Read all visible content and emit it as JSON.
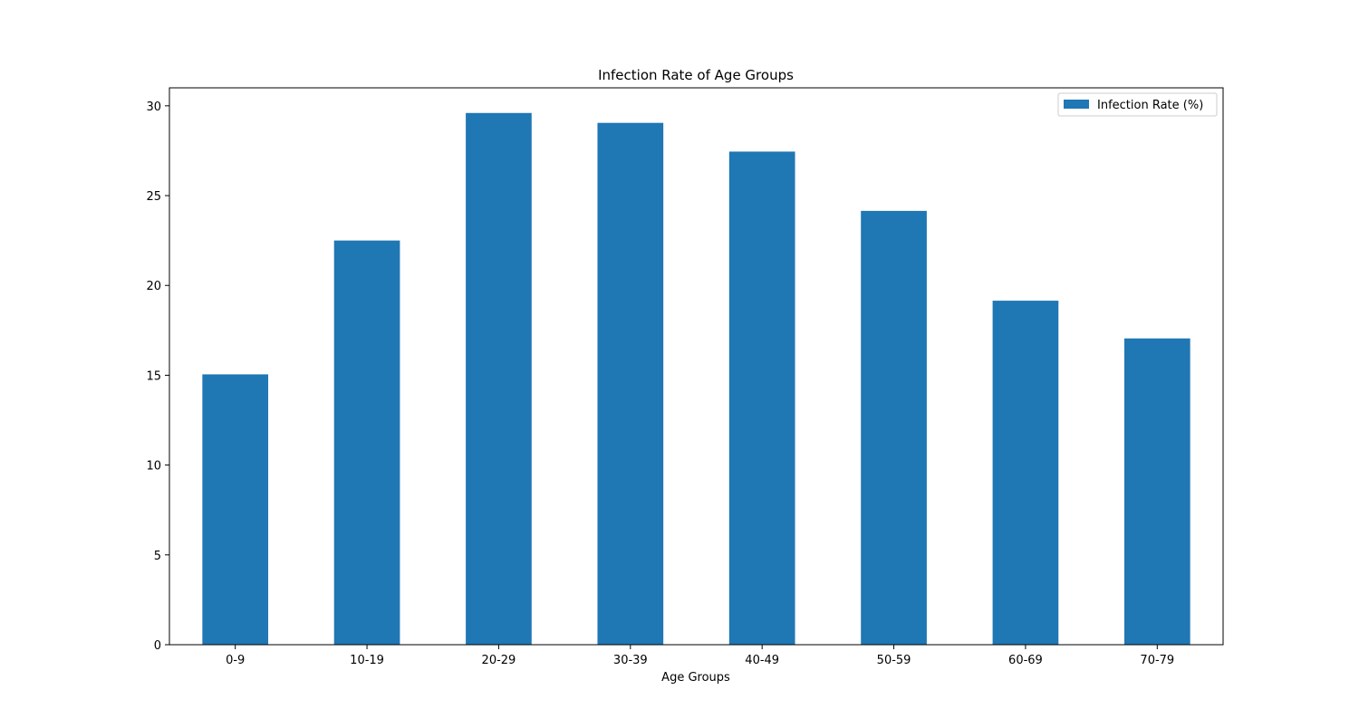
{
  "chart_data": {
    "type": "bar",
    "title": "Infection Rate of Age Groups",
    "xlabel": "Age Groups",
    "ylabel": "",
    "categories": [
      "0-9",
      "10-19",
      "20-29",
      "30-39",
      "40-49",
      "50-59",
      "60-69",
      "70-79"
    ],
    "series": [
      {
        "name": "Infection Rate (%)",
        "values": [
          15.05,
          22.5,
          29.6,
          29.05,
          27.45,
          24.15,
          19.15,
          17.05
        ],
        "color": "#1f77b4"
      }
    ],
    "ylim": [
      0,
      31
    ],
    "yticks": [
      0,
      5,
      10,
      15,
      20,
      25,
      30
    ],
    "grid": false,
    "legend_position": "top-right"
  }
}
